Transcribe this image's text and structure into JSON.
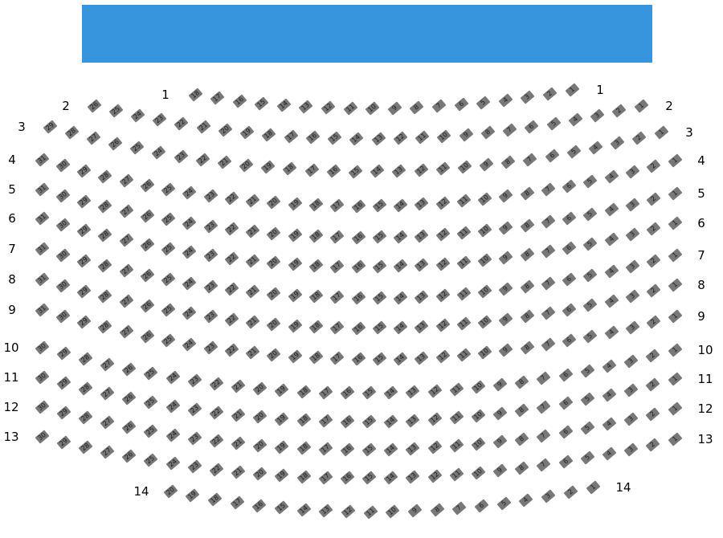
{
  "stage": {
    "color": "#3795de"
  },
  "seat_color": "#787878",
  "rows": [
    {
      "label": "1",
      "seats": [
        18,
        17,
        16,
        15,
        14,
        13,
        12,
        11,
        10,
        9,
        8,
        7,
        6,
        5,
        4,
        3,
        2,
        1
      ]
    },
    {
      "label": "2",
      "seats": [
        26,
        25,
        24,
        23,
        22,
        21,
        20,
        19,
        18,
        17,
        16,
        15,
        14,
        13,
        12,
        11,
        10,
        9,
        8,
        7,
        6,
        5,
        4,
        3,
        2,
        1
      ]
    },
    {
      "label": "3",
      "seats": [
        29,
        28,
        27,
        26,
        25,
        24,
        23,
        22,
        21,
        20,
        19,
        18,
        17,
        16,
        15,
        14,
        13,
        12,
        11,
        10,
        9,
        8,
        7,
        6,
        5,
        4,
        3,
        2,
        1
      ]
    },
    {
      "label": "4",
      "seats": [
        31,
        30,
        29,
        28,
        27,
        26,
        25,
        24,
        23,
        22,
        21,
        20,
        19,
        18,
        17,
        16,
        15,
        14,
        13,
        12,
        11,
        10,
        9,
        8,
        7,
        6,
        5,
        4,
        3,
        2,
        1
      ]
    },
    {
      "label": "5",
      "seats": [
        31,
        30,
        29,
        28,
        27,
        26,
        25,
        24,
        23,
        22,
        21,
        20,
        19,
        18,
        17,
        16,
        15,
        14,
        13,
        12,
        11,
        10,
        9,
        8,
        7,
        6,
        5,
        4,
        3,
        2,
        1
      ]
    },
    {
      "label": "6",
      "seats": [
        31,
        30,
        29,
        28,
        27,
        26,
        25,
        24,
        23,
        22,
        21,
        20,
        19,
        18,
        17,
        16,
        15,
        14,
        13,
        12,
        11,
        10,
        9,
        8,
        7,
        6,
        5,
        4,
        3,
        2,
        1
      ]
    },
    {
      "label": "7",
      "seats": [
        31,
        30,
        29,
        28,
        27,
        26,
        25,
        24,
        23,
        22,
        21,
        20,
        19,
        18,
        17,
        16,
        15,
        14,
        13,
        12,
        11,
        10,
        9,
        8,
        7,
        6,
        5,
        4,
        3,
        2,
        1
      ]
    },
    {
      "label": "8",
      "seats": [
        31,
        30,
        29,
        28,
        27,
        26,
        25,
        24,
        23,
        22,
        21,
        20,
        19,
        18,
        17,
        16,
        15,
        14,
        13,
        12,
        11,
        10,
        9,
        8,
        7,
        6,
        5,
        4,
        3,
        2,
        1
      ]
    },
    {
      "label": "9",
      "seats": [
        31,
        30,
        29,
        28,
        27,
        26,
        25,
        24,
        23,
        22,
        21,
        20,
        19,
        18,
        17,
        16,
        15,
        14,
        13,
        12,
        11,
        10,
        9,
        8,
        7,
        6,
        5,
        4,
        3,
        2,
        1
      ]
    },
    {
      "label": "10",
      "seats": [
        30,
        29,
        28,
        27,
        26,
        25,
        24,
        23,
        22,
        21,
        20,
        19,
        18,
        17,
        16,
        15,
        14,
        13,
        12,
        11,
        10,
        9,
        8,
        7,
        6,
        5,
        4,
        3,
        2,
        1
      ]
    },
    {
      "label": "11",
      "seats": [
        30,
        29,
        28,
        27,
        26,
        25,
        24,
        23,
        22,
        21,
        20,
        19,
        18,
        17,
        16,
        15,
        14,
        13,
        12,
        11,
        10,
        9,
        8,
        7,
        6,
        5,
        4,
        3,
        2,
        1
      ]
    },
    {
      "label": "12",
      "seats": [
        30,
        29,
        28,
        27,
        26,
        25,
        24,
        23,
        22,
        21,
        20,
        19,
        18,
        17,
        16,
        15,
        14,
        13,
        12,
        11,
        10,
        9,
        8,
        7,
        6,
        5,
        4,
        3,
        2,
        1
      ]
    },
    {
      "label": "13",
      "seats": [
        30,
        29,
        28,
        27,
        26,
        25,
        24,
        23,
        22,
        21,
        20,
        19,
        18,
        17,
        16,
        15,
        14,
        13,
        12,
        11,
        10,
        9,
        8,
        7,
        6,
        5,
        4,
        3,
        2,
        1
      ]
    },
    {
      "label": "14",
      "seats": [
        20,
        19,
        18,
        17,
        16,
        15,
        14,
        13,
        12,
        11,
        10,
        9,
        8,
        7,
        6,
        5,
        4,
        3,
        2,
        1
      ]
    }
  ]
}
